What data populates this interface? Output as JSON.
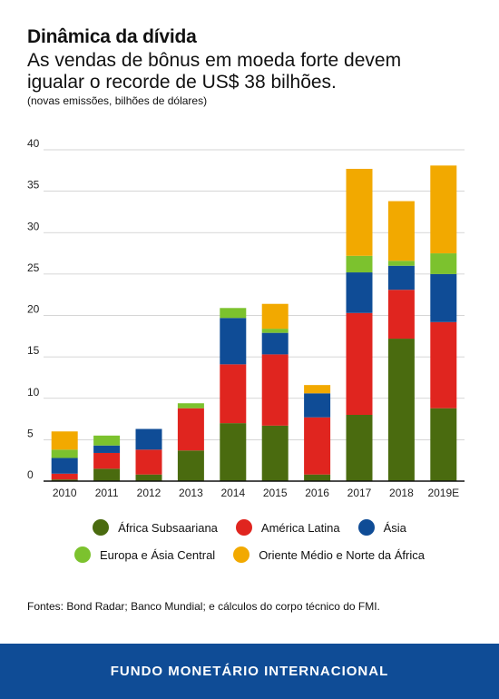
{
  "header": {
    "title": "Dinâmica da dívida",
    "subtitle": "As vendas de bônus em moeda forte devem igualar o recorde de US$ 38 bilhões.",
    "units": "(novas emissões, bilhões de dólares)"
  },
  "chart_data": {
    "type": "bar",
    "stacked": true,
    "categories": [
      "2010",
      "2011",
      "2012",
      "2013",
      "2014",
      "2015",
      "2016",
      "2017",
      "2018",
      "2019E"
    ],
    "ylim": [
      0,
      40
    ],
    "yticks": [
      0,
      5,
      10,
      15,
      20,
      25,
      30,
      35,
      40
    ],
    "grid": true,
    "legend_position": "bottom",
    "series": [
      {
        "name": "África Subsaariana",
        "color": "#4a6b0f",
        "values": [
          0.2,
          1.5,
          0.8,
          3.7,
          7.0,
          6.7,
          0.8,
          8.0,
          17.2,
          8.8
        ]
      },
      {
        "name": "América Latina",
        "color": "#e0251f",
        "values": [
          0.7,
          1.9,
          3.0,
          5.1,
          7.1,
          8.6,
          6.9,
          12.3,
          5.9,
          10.4
        ]
      },
      {
        "name": "Ásia",
        "color": "#0f4c96",
        "values": [
          1.9,
          0.9,
          2.5,
          0.0,
          5.6,
          2.6,
          2.9,
          4.9,
          2.9,
          5.8
        ]
      },
      {
        "name": "Europa e Ásia Central",
        "color": "#7cc22e",
        "values": [
          1.0,
          1.2,
          0.0,
          0.6,
          1.2,
          0.5,
          0.0,
          2.0,
          0.6,
          2.5
        ]
      },
      {
        "name": "Oriente Médio e Norte da África",
        "color": "#f2a900",
        "values": [
          2.2,
          0.0,
          0.0,
          0.0,
          0.0,
          3.0,
          1.0,
          10.5,
          7.2,
          10.6
        ]
      }
    ]
  },
  "source": "Fontes: Bond Radar; Banco Mundial; e cálculos do corpo técnico do FMI.",
  "footer": {
    "label": "FUNDO MONETÁRIO INTERNACIONAL"
  }
}
